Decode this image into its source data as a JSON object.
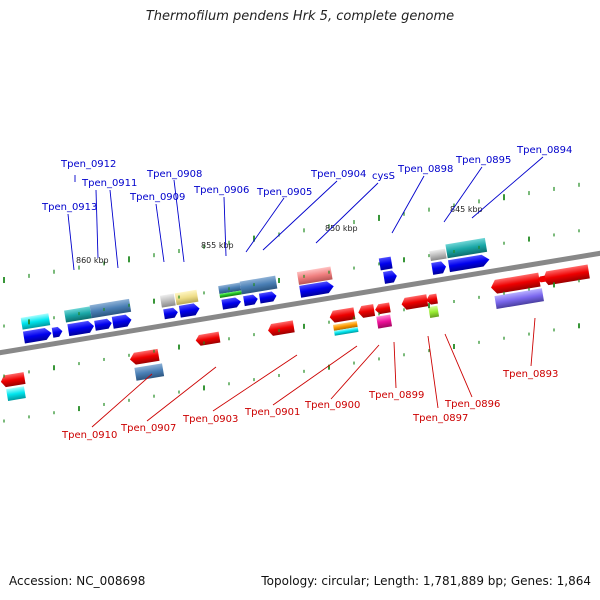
{
  "title": "Thermofilum pendens Hrk 5, complete genome",
  "footer": {
    "accession": "Accession: NC_008698",
    "summary": "Topology: circular; Length: 1,781,889 bp; Genes: 1,864"
  },
  "colors": {
    "backbone": "#8a8a8a",
    "forward_label": "#0000cc",
    "reverse_label": "#cc0000",
    "tick": "#228b22",
    "forward_gene": "#0000ee",
    "reverse_gene": "#ee0000"
  },
  "scale_labels": [
    "860 kbp",
    "855 kbp",
    "850 kbp",
    "845 kbp"
  ],
  "forward_gene_labels": [
    "Tpen_0912",
    "Tpen_0911",
    "Tpen_0913",
    "Tpen_0909",
    "Tpen_0908",
    "Tpen_0906",
    "Tpen_0905",
    "Tpen_0904",
    "cysS",
    "Tpen_0898",
    "Tpen_0895",
    "Tpen_0894"
  ],
  "reverse_gene_labels": [
    "Tpen_0910",
    "Tpen_0907",
    "Tpen_0903",
    "Tpen_0901",
    "Tpen_0900",
    "Tpen_0899",
    "Tpen_0897",
    "Tpen_0896",
    "Tpen_0893"
  ]
}
